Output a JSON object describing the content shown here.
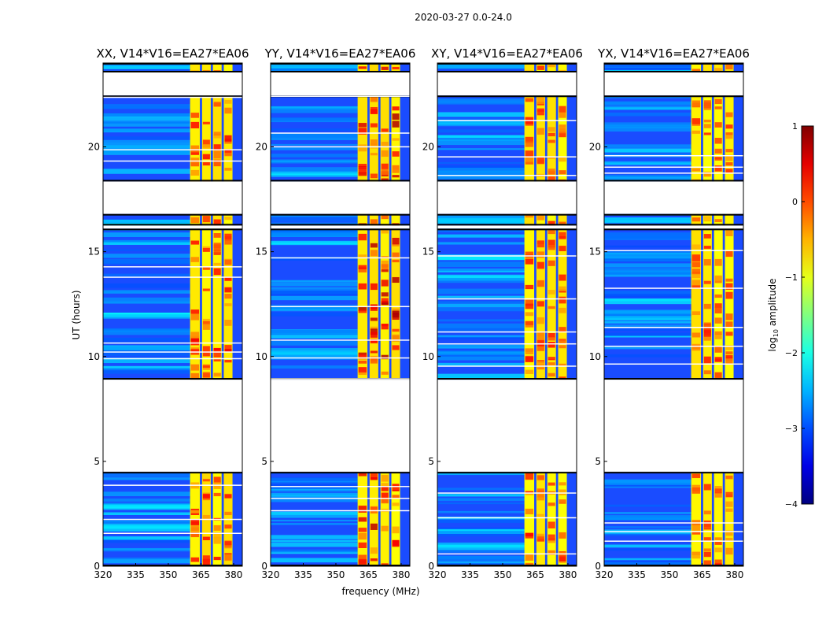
{
  "chart_data": {
    "type": "heatmap",
    "suptitle": "2020-03-27 0.0-24.0",
    "xlabel": "frequency (MHz)",
    "ylabel": "UT (hours)",
    "xlim": [
      320,
      384
    ],
    "ylim": [
      0,
      24
    ],
    "xticks": [
      320,
      335,
      350,
      365,
      380
    ],
    "yticks": [
      0,
      5,
      10,
      15,
      20
    ],
    "panels": [
      {
        "title": "XX, V14*V16=EA27*EA06",
        "hot": 0.55
      },
      {
        "title": "YY, V14*V16=EA27*EA06",
        "hot": 0.75
      },
      {
        "title": "XY, V14*V16=EA27*EA06",
        "hot": 0.5
      },
      {
        "title": "YX, V14*V16=EA27*EA06",
        "hot": 0.45
      }
    ],
    "time_segments_hours": [
      [
        0.0,
        4.5
      ],
      [
        8.9,
        16.1
      ],
      [
        16.25,
        16.8
      ],
      [
        18.35,
        22.45
      ],
      [
        23.55,
        24.0
      ]
    ],
    "bright_channels_mhz": [
      [
        360,
        364.5
      ],
      [
        365.5,
        369.5
      ],
      [
        370.5,
        374.5
      ],
      [
        375.5,
        379.5
      ]
    ],
    "colorbar": {
      "label": "log10 amplitude",
      "label_main": "log",
      "label_sub": "10",
      "label_rest": " amplitude",
      "range": [
        -4,
        1
      ],
      "ticks": [
        1,
        0,
        -1,
        -2,
        -3,
        -4
      ],
      "tick_labels": [
        "1",
        "0",
        "−1",
        "−2",
        "−3",
        "−4"
      ],
      "colormap": "jet"
    }
  }
}
